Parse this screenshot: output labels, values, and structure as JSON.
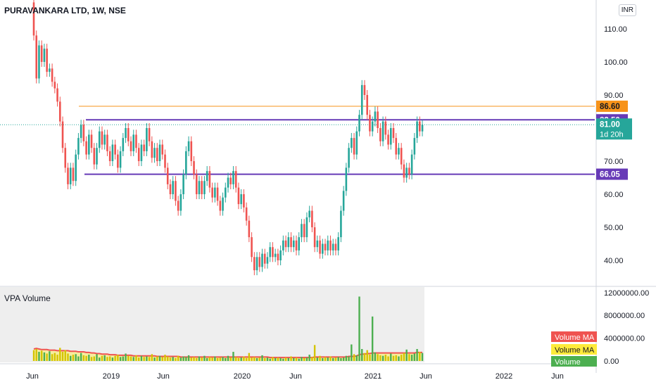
{
  "header": {
    "title": "PURAVANKARA LTD, 1W, NSE",
    "currency": "INR"
  },
  "volume_panel": {
    "title": "VPA Volume"
  },
  "price_axis": {
    "ticks": [
      "110.00",
      "100.00",
      "90.00",
      "80.00",
      "70.00",
      "60.00",
      "50.00",
      "40.00"
    ]
  },
  "volume_axis": {
    "ticks": [
      "12000000.00",
      "8000000.00",
      "4000000.00",
      "0.00"
    ]
  },
  "time_axis": {
    "ticks": [
      "Jun",
      "2019",
      "Jun",
      "2020",
      "Jun",
      "2021",
      "Jun",
      "2022",
      "Jun"
    ]
  },
  "price_labels": {
    "orange": {
      "value": "86.60",
      "color": "#f7931a"
    },
    "upper": {
      "value": "82.50",
      "color": "#673ab7"
    },
    "current": {
      "value": "81.00",
      "countdown": "1d 20h",
      "color": "#26a69a"
    },
    "lower": {
      "value": "66.05",
      "color": "#673ab7"
    }
  },
  "volume_legend": [
    {
      "label": "Volume MA",
      "bg": "#ef5350",
      "fg": "#ffffff"
    },
    {
      "label": "Volume MA",
      "bg": "#ffeb3b",
      "fg": "#131722"
    },
    {
      "label": "Volume",
      "bg": "#4caf50",
      "fg": "#ffffff"
    }
  ],
  "colors": {
    "up": "#26a69a",
    "down": "#ef5350",
    "vol_up": "#4caf50",
    "vol_ma": "#ef5350",
    "vol_ma_fill": "#ffeb3b"
  },
  "chart_data": {
    "type": "candlestick",
    "title": "PURAVANKARA LTD, 1W, NSE",
    "y_range": [
      35,
      120
    ],
    "volume_range": [
      0,
      12000000
    ],
    "horizontal_lines": [
      86.6,
      82.5,
      66.05
    ],
    "last_price": 81.0,
    "series": [
      {
        "t": 0,
        "o": 118,
        "c": 108
      },
      {
        "t": 1,
        "o": 108,
        "c": 95
      },
      {
        "t": 2,
        "o": 95,
        "c": 105
      },
      {
        "t": 3,
        "o": 105,
        "c": 100
      },
      {
        "t": 4,
        "o": 100,
        "c": 104
      },
      {
        "t": 5,
        "o": 104,
        "c": 97
      },
      {
        "t": 6,
        "o": 97,
        "c": 98
      },
      {
        "t": 7,
        "o": 98,
        "c": 94
      },
      {
        "t": 8,
        "o": 94,
        "c": 92
      },
      {
        "t": 9,
        "o": 92,
        "c": 88
      },
      {
        "t": 10,
        "o": 88,
        "c": 82
      },
      {
        "t": 11,
        "o": 82,
        "c": 74
      },
      {
        "t": 12,
        "o": 74,
        "c": 68
      },
      {
        "t": 13,
        "o": 68,
        "c": 63
      },
      {
        "t": 14,
        "o": 63,
        "c": 68
      },
      {
        "t": 15,
        "o": 68,
        "c": 64
      },
      {
        "t": 16,
        "o": 64,
        "c": 72
      },
      {
        "t": 17,
        "o": 72,
        "c": 77
      },
      {
        "t": 18,
        "o": 77,
        "c": 81
      },
      {
        "t": 19,
        "o": 81,
        "c": 76
      },
      {
        "t": 20,
        "o": 76,
        "c": 72
      },
      {
        "t": 21,
        "o": 72,
        "c": 78
      },
      {
        "t": 22,
        "o": 78,
        "c": 74
      },
      {
        "t": 23,
        "o": 74,
        "c": 69
      },
      {
        "t": 24,
        "o": 69,
        "c": 74
      },
      {
        "t": 25,
        "o": 74,
        "c": 79
      },
      {
        "t": 26,
        "o": 79,
        "c": 75
      },
      {
        "t": 27,
        "o": 75,
        "c": 78
      },
      {
        "t": 28,
        "o": 78,
        "c": 73
      },
      {
        "t": 29,
        "o": 73,
        "c": 70
      },
      {
        "t": 30,
        "o": 70,
        "c": 75
      },
      {
        "t": 31,
        "o": 75,
        "c": 72
      },
      {
        "t": 32,
        "o": 72,
        "c": 68
      },
      {
        "t": 33,
        "o": 68,
        "c": 73
      },
      {
        "t": 34,
        "o": 73,
        "c": 77
      },
      {
        "t": 35,
        "o": 77,
        "c": 80
      },
      {
        "t": 36,
        "o": 80,
        "c": 76
      },
      {
        "t": 37,
        "o": 76,
        "c": 73
      },
      {
        "t": 38,
        "o": 73,
        "c": 78
      },
      {
        "t": 39,
        "o": 78,
        "c": 74
      },
      {
        "t": 40,
        "o": 74,
        "c": 70
      },
      {
        "t": 41,
        "o": 70,
        "c": 75
      },
      {
        "t": 42,
        "o": 75,
        "c": 73
      },
      {
        "t": 43,
        "o": 73,
        "c": 80
      },
      {
        "t": 44,
        "o": 80,
        "c": 76
      },
      {
        "t": 45,
        "o": 76,
        "c": 71
      },
      {
        "t": 46,
        "o": 71,
        "c": 74
      },
      {
        "t": 47,
        "o": 74,
        "c": 70
      },
      {
        "t": 48,
        "o": 70,
        "c": 75
      },
      {
        "t": 49,
        "o": 75,
        "c": 72
      },
      {
        "t": 50,
        "o": 72,
        "c": 68
      },
      {
        "t": 51,
        "o": 68,
        "c": 63
      },
      {
        "t": 52,
        "o": 63,
        "c": 60
      },
      {
        "t": 53,
        "o": 60,
        "c": 64
      },
      {
        "t": 54,
        "o": 64,
        "c": 58
      },
      {
        "t": 55,
        "o": 58,
        "c": 55
      },
      {
        "t": 56,
        "o": 55,
        "c": 60
      },
      {
        "t": 57,
        "o": 60,
        "c": 66
      },
      {
        "t": 58,
        "o": 66,
        "c": 73
      },
      {
        "t": 59,
        "o": 73,
        "c": 76
      },
      {
        "t": 60,
        "o": 76,
        "c": 70
      },
      {
        "t": 61,
        "o": 70,
        "c": 66
      },
      {
        "t": 62,
        "o": 66,
        "c": 60
      },
      {
        "t": 63,
        "o": 60,
        "c": 64
      },
      {
        "t": 64,
        "o": 64,
        "c": 60
      },
      {
        "t": 65,
        "o": 60,
        "c": 64
      },
      {
        "t": 66,
        "o": 64,
        "c": 67
      },
      {
        "t": 67,
        "o": 67,
        "c": 62
      },
      {
        "t": 68,
        "o": 62,
        "c": 59
      },
      {
        "t": 69,
        "o": 59,
        "c": 62
      },
      {
        "t": 70,
        "o": 62,
        "c": 58
      },
      {
        "t": 71,
        "o": 58,
        "c": 55
      },
      {
        "t": 72,
        "o": 55,
        "c": 59
      },
      {
        "t": 73,
        "o": 59,
        "c": 62
      },
      {
        "t": 74,
        "o": 62,
        "c": 65
      },
      {
        "t": 75,
        "o": 65,
        "c": 63
      },
      {
        "t": 76,
        "o": 63,
        "c": 67
      },
      {
        "t": 77,
        "o": 67,
        "c": 62
      },
      {
        "t": 78,
        "o": 62,
        "c": 57
      },
      {
        "t": 79,
        "o": 57,
        "c": 60
      },
      {
        "t": 80,
        "o": 60,
        "c": 56
      },
      {
        "t": 81,
        "o": 56,
        "c": 52
      },
      {
        "t": 82,
        "o": 52,
        "c": 47
      },
      {
        "t": 83,
        "o": 47,
        "c": 41
      },
      {
        "t": 84,
        "o": 41,
        "c": 37
      },
      {
        "t": 85,
        "o": 37,
        "c": 41
      },
      {
        "t": 86,
        "o": 41,
        "c": 38
      },
      {
        "t": 87,
        "o": 38,
        "c": 42
      },
      {
        "t": 88,
        "o": 42,
        "c": 39
      },
      {
        "t": 89,
        "o": 39,
        "c": 41
      },
      {
        "t": 90,
        "o": 41,
        "c": 44
      },
      {
        "t": 91,
        "o": 44,
        "c": 41
      },
      {
        "t": 92,
        "o": 41,
        "c": 42
      },
      {
        "t": 93,
        "o": 42,
        "c": 40
      },
      {
        "t": 94,
        "o": 40,
        "c": 43
      },
      {
        "t": 95,
        "o": 43,
        "c": 46
      },
      {
        "t": 96,
        "o": 46,
        "c": 44
      },
      {
        "t": 97,
        "o": 44,
        "c": 47
      },
      {
        "t": 98,
        "o": 47,
        "c": 44
      },
      {
        "t": 99,
        "o": 44,
        "c": 46
      },
      {
        "t": 100,
        "o": 46,
        "c": 43
      },
      {
        "t": 101,
        "o": 43,
        "c": 47
      },
      {
        "t": 102,
        "o": 47,
        "c": 51
      },
      {
        "t": 103,
        "o": 51,
        "c": 47
      },
      {
        "t": 104,
        "o": 47,
        "c": 53
      },
      {
        "t": 105,
        "o": 53,
        "c": 55
      },
      {
        "t": 106,
        "o": 55,
        "c": 50
      },
      {
        "t": 107,
        "o": 50,
        "c": 44
      },
      {
        "t": 108,
        "o": 44,
        "c": 46
      },
      {
        "t": 109,
        "o": 46,
        "c": 42
      },
      {
        "t": 110,
        "o": 42,
        "c": 45
      },
      {
        "t": 111,
        "o": 45,
        "c": 43
      },
      {
        "t": 112,
        "o": 43,
        "c": 46
      },
      {
        "t": 113,
        "o": 46,
        "c": 43
      },
      {
        "t": 114,
        "o": 43,
        "c": 45
      },
      {
        "t": 115,
        "o": 45,
        "c": 43
      },
      {
        "t": 116,
        "o": 43,
        "c": 47
      },
      {
        "t": 117,
        "o": 47,
        "c": 55
      },
      {
        "t": 118,
        "o": 55,
        "c": 61
      },
      {
        "t": 119,
        "o": 61,
        "c": 68
      },
      {
        "t": 120,
        "o": 68,
        "c": 74
      },
      {
        "t": 121,
        "o": 74,
        "c": 77
      },
      {
        "t": 122,
        "o": 77,
        "c": 72
      },
      {
        "t": 123,
        "o": 72,
        "c": 79
      },
      {
        "t": 124,
        "o": 79,
        "c": 84
      },
      {
        "t": 125,
        "o": 84,
        "c": 93
      },
      {
        "t": 126,
        "o": 93,
        "c": 90
      },
      {
        "t": 127,
        "o": 90,
        "c": 84
      },
      {
        "t": 128,
        "o": 84,
        "c": 79
      },
      {
        "t": 129,
        "o": 79,
        "c": 82
      },
      {
        "t": 130,
        "o": 82,
        "c": 85
      },
      {
        "t": 131,
        "o": 85,
        "c": 80
      },
      {
        "t": 132,
        "o": 80,
        "c": 76
      },
      {
        "t": 133,
        "o": 76,
        "c": 82
      },
      {
        "t": 134,
        "o": 82,
        "c": 78
      },
      {
        "t": 135,
        "o": 78,
        "c": 75
      },
      {
        "t": 136,
        "o": 75,
        "c": 80
      },
      {
        "t": 137,
        "o": 80,
        "c": 77
      },
      {
        "t": 138,
        "o": 77,
        "c": 72
      },
      {
        "t": 139,
        "o": 72,
        "c": 74
      },
      {
        "t": 140,
        "o": 74,
        "c": 69
      },
      {
        "t": 141,
        "o": 69,
        "c": 65
      },
      {
        "t": 142,
        "o": 65,
        "c": 68
      },
      {
        "t": 143,
        "o": 68,
        "c": 66
      },
      {
        "t": 144,
        "o": 66,
        "c": 72
      },
      {
        "t": 145,
        "o": 72,
        "c": 77
      },
      {
        "t": 146,
        "o": 77,
        "c": 82
      },
      {
        "t": 147,
        "o": 82,
        "c": 79
      },
      {
        "t": 148,
        "o": 79,
        "c": 81
      }
    ],
    "volume": [
      1.9,
      2.1,
      1.6,
      1.8,
      1.5,
      1.3,
      1.7,
      1.2,
      1.4,
      1.1,
      2.3,
      1.6,
      1.9,
      1.3,
      0.9,
      1.1,
      1.2,
      0.8,
      1.4,
      1.0,
      0.9,
      1.1,
      0.7,
      0.8,
      1.2,
      0.6,
      0.9,
      1.0,
      0.7,
      0.8,
      0.6,
      0.9,
      1.1,
      0.7,
      0.8,
      1.3,
      0.9,
      0.8,
      0.7,
      1.0,
      0.6,
      0.9,
      0.7,
      0.8,
      0.7,
      1.2,
      0.6,
      0.8,
      0.9,
      0.7,
      1.1,
      0.8,
      0.6,
      0.7,
      0.5,
      0.9,
      0.6,
      0.8,
      0.7,
      1.0,
      0.6,
      0.7,
      0.5,
      0.8,
      0.6,
      0.9,
      0.5,
      0.7,
      0.6,
      0.8,
      0.5,
      0.6,
      0.7,
      0.5,
      0.9,
      0.6,
      1.6,
      0.7,
      0.5,
      0.6,
      0.8,
      0.5,
      1.4,
      0.6,
      0.7,
      0.5,
      0.6,
      1.0,
      0.5,
      0.6,
      0.4,
      0.7,
      0.5,
      0.6,
      0.5,
      0.4,
      0.6,
      0.5,
      0.8,
      0.5,
      0.6,
      0.4,
      0.7,
      0.5,
      0.6,
      1.1,
      0.7,
      2.8,
      0.6,
      0.9,
      0.5,
      0.7,
      0.6,
      0.8,
      0.5,
      0.6,
      0.7,
      0.5,
      0.6,
      0.9,
      0.8,
      2.9,
      1.2,
      1.0,
      11.3,
      2.1,
      1.4,
      1.9,
      1.1,
      7.8,
      1.5,
      1.2,
      1.0,
      0.9,
      1.1,
      0.8,
      1.3,
      0.9,
      1.0,
      0.8,
      1.1,
      1.4,
      2.0,
      1.2,
      1.1,
      1.3,
      2.1,
      1.6,
      1.4
    ],
    "volume_ma": [
      2.1,
      2.2,
      2.1,
      2.0,
      2.0,
      2.0,
      1.9,
      1.9,
      1.9,
      1.8,
      1.8,
      1.8,
      1.8,
      1.8,
      1.7,
      1.7,
      1.7,
      1.6,
      1.6,
      1.6,
      1.5,
      1.5,
      1.4,
      1.4,
      1.3,
      1.3,
      1.2,
      1.2,
      1.2,
      1.1,
      1.1,
      1.1,
      1.0,
      1.0,
      1.0,
      1.0,
      1.0,
      1.0,
      0.9,
      0.9,
      0.9,
      0.9,
      0.9,
      0.9,
      0.9,
      0.9,
      0.9,
      0.8,
      0.8,
      0.8,
      0.8,
      0.8,
      0.8,
      0.8,
      0.8,
      0.8,
      0.7,
      0.7,
      0.7,
      0.7,
      0.7,
      0.7,
      0.7,
      0.7,
      0.7,
      0.7,
      0.7,
      0.7,
      0.7,
      0.7,
      0.7,
      0.7,
      0.7,
      0.7,
      0.7,
      0.7,
      0.7,
      0.7,
      0.7,
      0.7,
      0.7,
      0.7,
      0.7,
      0.7,
      0.7,
      0.7,
      0.7,
      0.7,
      0.7,
      0.7,
      0.6,
      0.6,
      0.6,
      0.6,
      0.6,
      0.6,
      0.6,
      0.6,
      0.6,
      0.6,
      0.6,
      0.6,
      0.6,
      0.6,
      0.6,
      0.6,
      0.6,
      0.7,
      0.7,
      0.7,
      0.7,
      0.7,
      0.7,
      0.7,
      0.7,
      0.7,
      0.7,
      0.7,
      0.7,
      0.7,
      0.8,
      0.8,
      0.8,
      0.9,
      1.1,
      1.2,
      1.2,
      1.3,
      1.3,
      1.4,
      1.4,
      1.4,
      1.4,
      1.4,
      1.4,
      1.4,
      1.4,
      1.4,
      1.4,
      1.4,
      1.4,
      1.4,
      1.4,
      1.4,
      1.4,
      1.4,
      1.5,
      1.5,
      1.5
    ]
  }
}
